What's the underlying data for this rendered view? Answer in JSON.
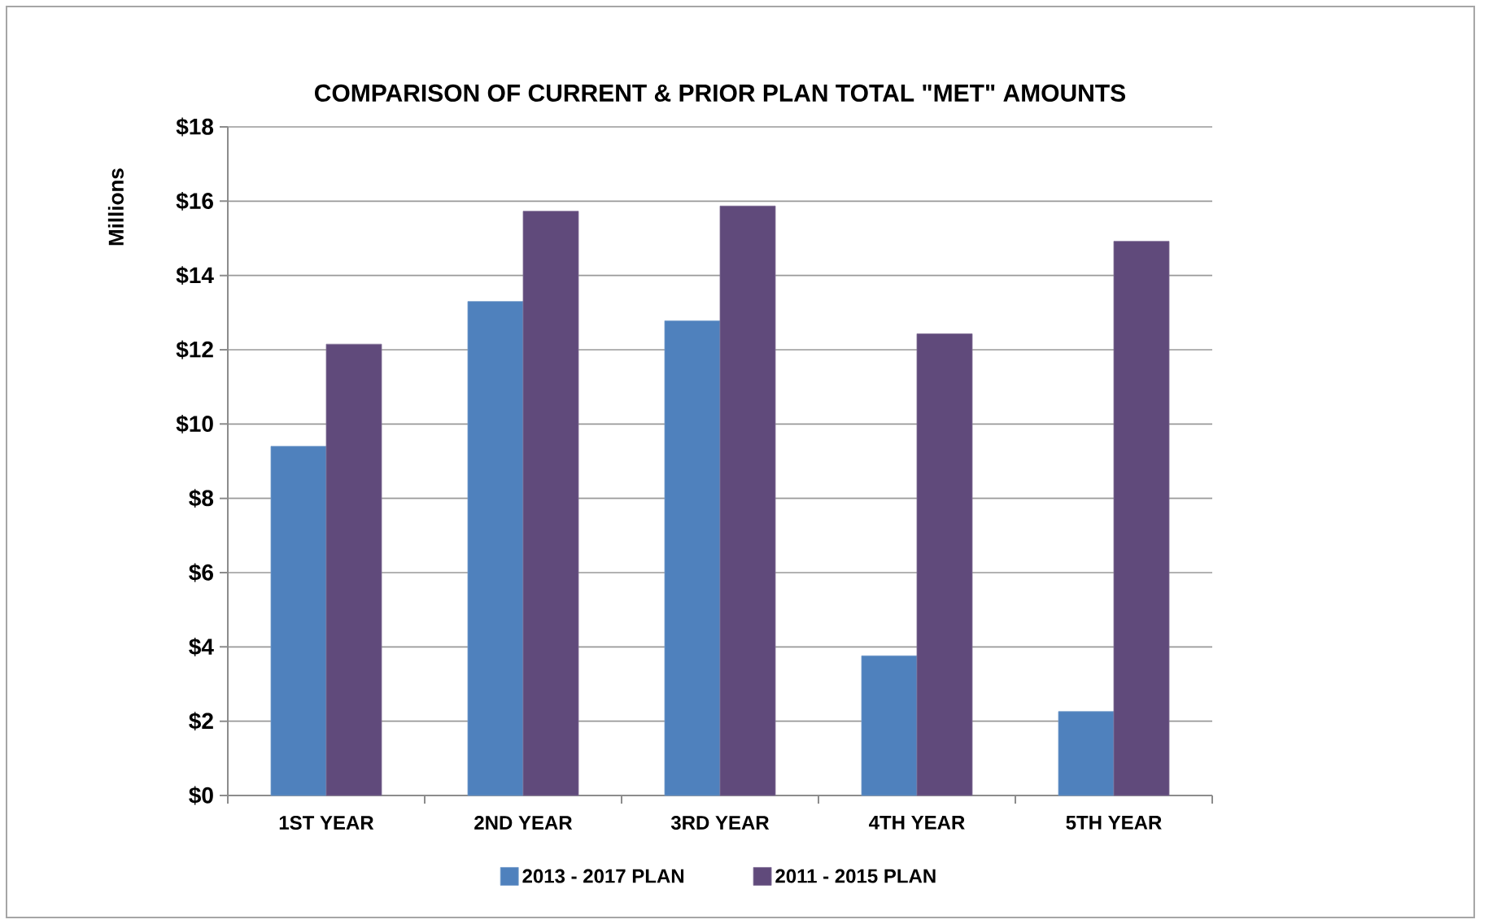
{
  "chart_data": {
    "type": "bar",
    "title": "COMPARISON OF CURRENT & PRIOR PLAN TOTAL \"MET\" AMOUNTS",
    "ylabel": "Millions",
    "categories": [
      "1ST YEAR",
      "2ND YEAR",
      "3RD YEAR",
      "4TH YEAR",
      "5TH YEAR"
    ],
    "series": [
      {
        "name": "2013 - 2017 PLAN",
        "color": "#4f81bd",
        "values": [
          9.4,
          13.3,
          12.78,
          3.76,
          2.26
        ]
      },
      {
        "name": "2011 - 2015 PLAN",
        "color": "#604a7b",
        "values": [
          12.15,
          15.73,
          15.87,
          12.43,
          14.92
        ]
      }
    ],
    "ylim": [
      0,
      18
    ],
    "yticks": [
      {
        "value": 0,
        "label": "$0"
      },
      {
        "value": 2,
        "label": "$2"
      },
      {
        "value": 4,
        "label": "$4"
      },
      {
        "value": 6,
        "label": "$6"
      },
      {
        "value": 8,
        "label": "$8"
      },
      {
        "value": 10,
        "label": "$10"
      },
      {
        "value": 12,
        "label": "$12"
      },
      {
        "value": 14,
        "label": "$14"
      },
      {
        "value": 16,
        "label": "$16"
      },
      {
        "value": 18,
        "label": "$18"
      }
    ],
    "grid": "y",
    "legend": "bottom"
  }
}
